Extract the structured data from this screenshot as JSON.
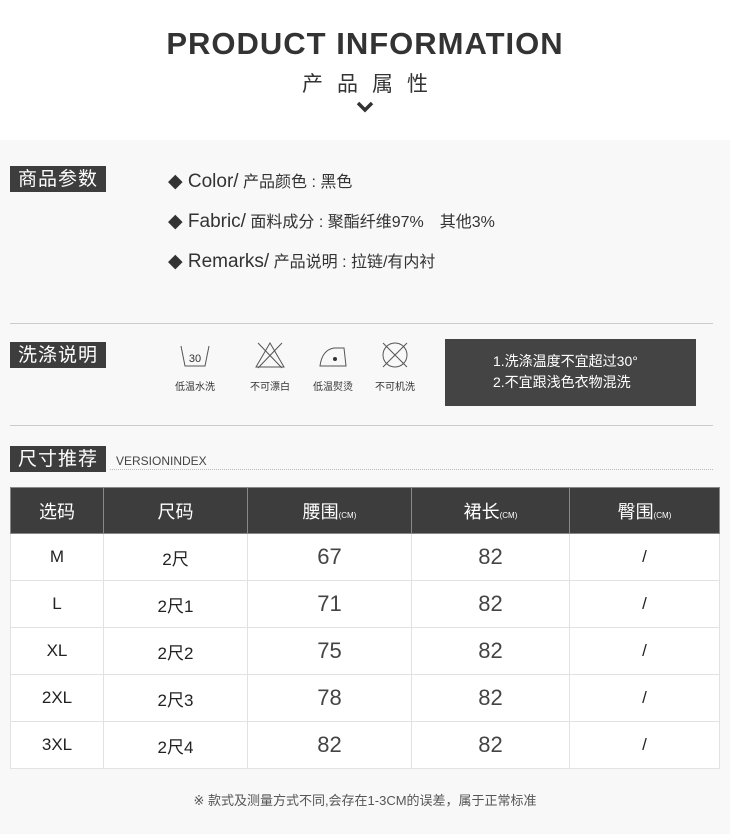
{
  "header": {
    "title": "PRODUCT INFORMATION",
    "subtitle": "产品属性"
  },
  "params": {
    "label": "商品参数",
    "items": [
      {
        "key": "◆ Color/",
        "label": " 产品颜色 : 黑色"
      },
      {
        "key": "◆ Fabric/",
        "label": " 面料成分 : 聚酯纤维97%　其他3%"
      },
      {
        "key": "◆ Remarks/",
        "label": " 产品说明 : 拉链/有内衬"
      }
    ]
  },
  "wash": {
    "label": "洗涤说明",
    "icons": [
      {
        "icon": "wash-30-icon",
        "label": "低温水洗",
        "temp": "30"
      },
      {
        "icon": "no-bleach-icon",
        "label": "不可漂白"
      },
      {
        "icon": "low-iron-icon",
        "label": "低温熨烫"
      },
      {
        "icon": "no-machine-wash-icon",
        "label": "不可机洗"
      }
    ],
    "notes": [
      "1.洗涤温度不宜超过30°",
      "2.不宜跟浅色衣物混洗"
    ]
  },
  "size": {
    "label": "尺寸推荐",
    "sublabel": "VERSIONINDEX",
    "headers": [
      {
        "t": "选码",
        "u": ""
      },
      {
        "t": "尺码",
        "u": ""
      },
      {
        "t": "腰围",
        "u": "(CM)"
      },
      {
        "t": "裙长",
        "u": "(CM)"
      },
      {
        "t": "臀围",
        "u": "(CM)"
      }
    ],
    "rows": [
      [
        "M",
        "2尺",
        "67",
        "82",
        "/"
      ],
      [
        "L",
        "2尺1",
        "71",
        "82",
        "/"
      ],
      [
        "XL",
        "2尺2",
        "75",
        "82",
        "/"
      ],
      [
        "2XL",
        "2尺3",
        "78",
        "82",
        "/"
      ],
      [
        "3XL",
        "2尺4",
        "82",
        "82",
        "/"
      ]
    ],
    "footnote": "※ 款式及测量方式不同,会存在1-3CM的误差，属于正常标准"
  }
}
